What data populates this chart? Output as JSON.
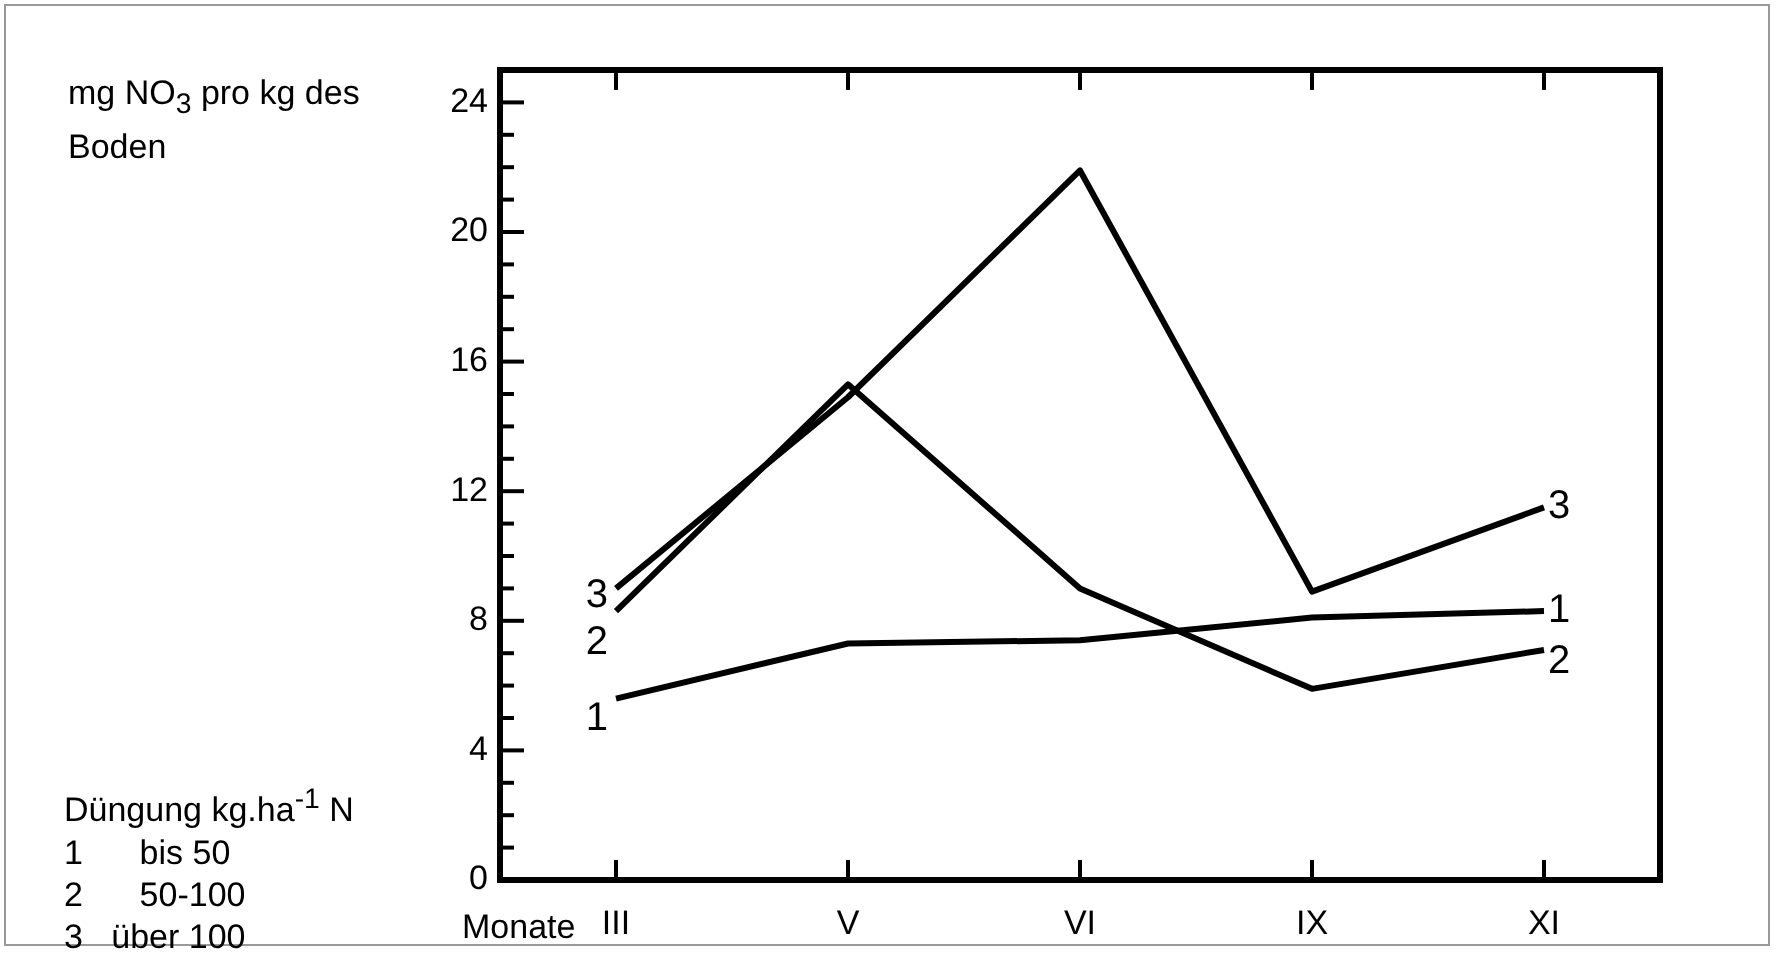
{
  "chart_data": {
    "type": "line",
    "ylabel": "mg NO$_{3}$ pro kg des Boden",
    "xlabel": "Monate",
    "categories": [
      "III",
      "V",
      "VI",
      "IX",
      "XI"
    ],
    "series": [
      {
        "name": "1",
        "color": "#000000",
        "values": [
          5.6,
          7.3,
          7.4,
          8.1,
          8.3
        ]
      },
      {
        "name": "2",
        "color": "#000000",
        "values": [
          8.3,
          15.3,
          9.0,
          5.9,
          7.1
        ]
      },
      {
        "name": "3",
        "color": "#000000",
        "values": [
          9.0,
          14.9,
          21.9,
          8.9,
          11.5
        ]
      }
    ],
    "ylim": [
      0,
      25
    ],
    "yticks": [
      0,
      {
        "value": 1,
        "label": null
      },
      {
        "value": 2,
        "label": null
      },
      {
        "value": 3,
        "label": null
      },
      4,
      {
        "value": 5,
        "label": null
      },
      {
        "value": 6,
        "label": null
      },
      {
        "value": 7,
        "label": null
      },
      8,
      {
        "value": 9,
        "label": null
      },
      {
        "value": 10,
        "label": null
      },
      {
        "value": 11,
        "label": null
      },
      12,
      {
        "value": 13,
        "label": null
      },
      {
        "value": 14,
        "label": null
      },
      {
        "value": 15,
        "label": null
      },
      16,
      {
        "value": 17,
        "label": null
      },
      {
        "value": 18,
        "label": null
      },
      {
        "value": 19,
        "label": null
      },
      20,
      {
        "value": 21,
        "label": null
      },
      {
        "value": 22,
        "label": null
      },
      {
        "value": 23,
        "label": null
      },
      24
    ],
    "annotations": [
      "Düngung kg.ha$^{-1}$ N",
      "1      bis 50",
      "2      50-100",
      "3   über 100"
    ],
    "legend": false,
    "grid": false,
    "marker": "none",
    "line_style": "solid"
  }
}
